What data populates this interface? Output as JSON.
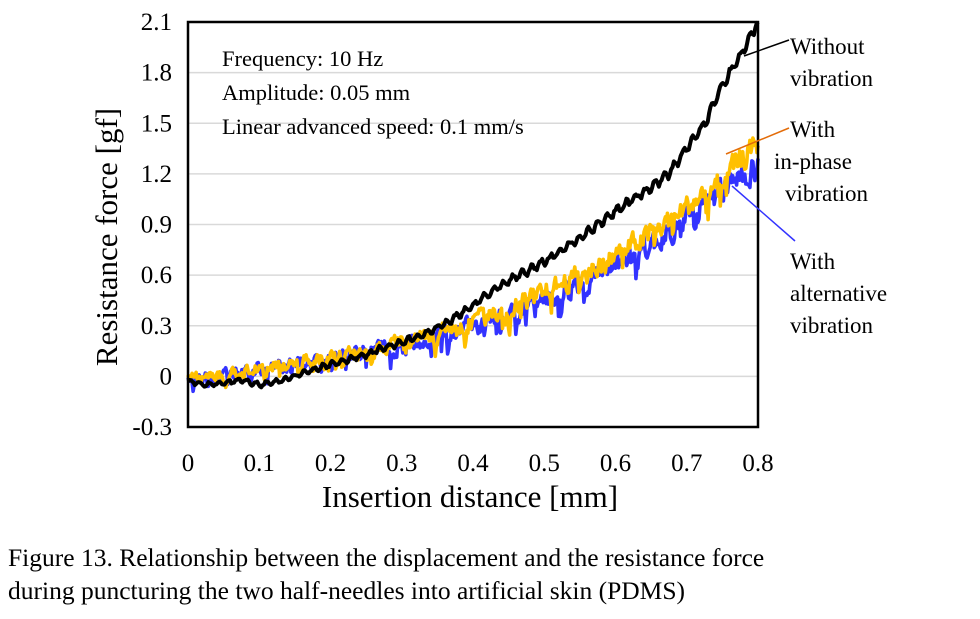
{
  "chart_data": {
    "type": "line",
    "xlabel": "Insertion distance [mm]",
    "ylabel": "Resistance force [gf]",
    "xlim": [
      0,
      0.8
    ],
    "ylim": [
      -0.3,
      2.1
    ],
    "xticks": [
      "0",
      "0.1",
      "0.2",
      "0.3",
      "0.4",
      "0.5",
      "0.6",
      "0.7",
      "0.8"
    ],
    "yticks": [
      "-0.3",
      "0",
      "0.3",
      "0.6",
      "0.9",
      "1.2",
      "1.5",
      "1.8",
      "2.1"
    ],
    "grid": "horizontal",
    "conditions": [
      "Frequency: 10 Hz",
      "Amplitude: 0.05 mm",
      "Linear advanced speed: 0.1 mm/s"
    ],
    "series": [
      {
        "label_lines": [
          "With",
          "alternative",
          "vibration"
        ],
        "color": "#3333ff",
        "x": [
          0,
          0.025,
          0.05,
          0.075,
          0.1,
          0.125,
          0.15,
          0.175,
          0.2,
          0.225,
          0.25,
          0.275,
          0.3,
          0.325,
          0.35,
          0.375,
          0.4,
          0.425,
          0.45,
          0.475,
          0.5,
          0.525,
          0.55,
          0.575,
          0.6,
          0.625,
          0.65,
          0.675,
          0.7,
          0.725,
          0.75,
          0.775,
          0.8
        ],
        "y": [
          -0.02,
          -0.01,
          0.0,
          0.02,
          0.04,
          0.06,
          0.07,
          0.09,
          0.1,
          0.12,
          0.14,
          0.16,
          0.18,
          0.21,
          0.24,
          0.27,
          0.3,
          0.33,
          0.37,
          0.41,
          0.45,
          0.5,
          0.55,
          0.6,
          0.66,
          0.72,
          0.78,
          0.85,
          0.93,
          1.01,
          1.1,
          1.18,
          1.25
        ],
        "noise": 0.09
      },
      {
        "label_lines": [
          "With",
          "in-phase",
          "vibration"
        ],
        "color": "#ffc000",
        "x": [
          0,
          0.025,
          0.05,
          0.075,
          0.1,
          0.125,
          0.15,
          0.175,
          0.2,
          0.225,
          0.25,
          0.275,
          0.3,
          0.325,
          0.35,
          0.375,
          0.4,
          0.425,
          0.45,
          0.475,
          0.5,
          0.525,
          0.55,
          0.575,
          0.6,
          0.625,
          0.65,
          0.675,
          0.7,
          0.725,
          0.75,
          0.775,
          0.8
        ],
        "y": [
          0.0,
          0.0,
          0.01,
          0.03,
          0.05,
          0.07,
          0.08,
          0.1,
          0.11,
          0.13,
          0.15,
          0.17,
          0.2,
          0.23,
          0.26,
          0.29,
          0.33,
          0.37,
          0.41,
          0.45,
          0.5,
          0.55,
          0.6,
          0.66,
          0.72,
          0.78,
          0.85,
          0.92,
          1.0,
          1.08,
          1.18,
          1.27,
          1.38
        ],
        "noise": 0.08
      },
      {
        "label_lines": [
          "Without",
          "vibration"
        ],
        "color": "#000000",
        "x": [
          0,
          0.025,
          0.05,
          0.075,
          0.1,
          0.125,
          0.15,
          0.175,
          0.2,
          0.225,
          0.25,
          0.275,
          0.3,
          0.325,
          0.35,
          0.375,
          0.4,
          0.425,
          0.45,
          0.475,
          0.5,
          0.525,
          0.55,
          0.575,
          0.6,
          0.625,
          0.65,
          0.675,
          0.7,
          0.725,
          0.75,
          0.775,
          0.8
        ],
        "y": [
          -0.03,
          -0.05,
          -0.04,
          -0.02,
          -0.05,
          -0.03,
          0.0,
          0.04,
          0.07,
          0.1,
          0.13,
          0.17,
          0.2,
          0.24,
          0.29,
          0.35,
          0.42,
          0.5,
          0.57,
          0.62,
          0.68,
          0.75,
          0.82,
          0.9,
          0.98,
          1.05,
          1.12,
          1.2,
          1.35,
          1.5,
          1.72,
          1.9,
          2.1
        ],
        "noise": 0.018
      }
    ]
  },
  "caption": {
    "line1": "Figure 13. Relationship between the displacement and the resistance force",
    "line2": "during puncturing the two half-needles into artificial skin (PDMS)"
  }
}
